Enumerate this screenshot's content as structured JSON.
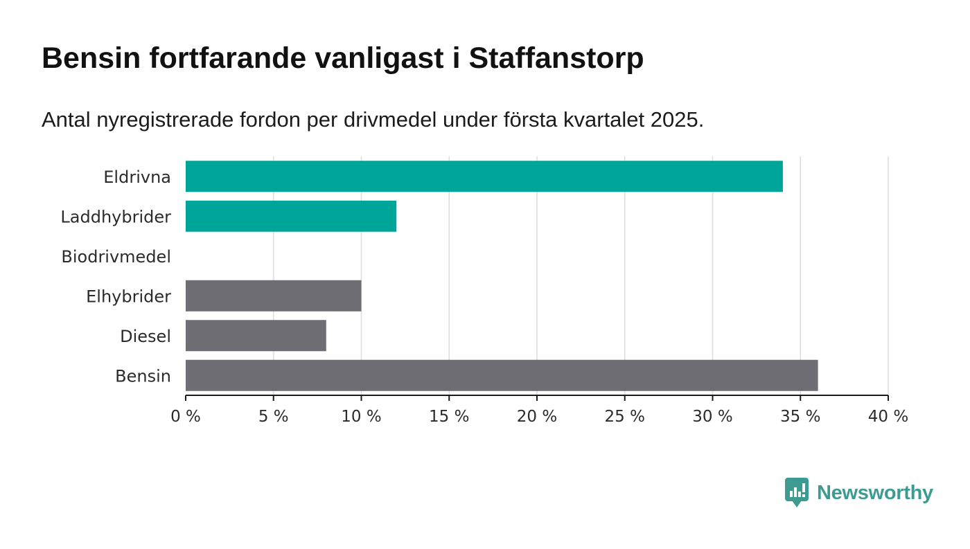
{
  "title": "Bensin fortfarande vanligast i Staffanstorp",
  "subtitle": "Antal nyregistrerade fordon per drivmedel under första kvartalet 2025.",
  "brand": {
    "name": "Newsworthy",
    "icon": "newsworthy-logo-icon",
    "color": "#3d9b91"
  },
  "chart_data": {
    "type": "bar",
    "orientation": "horizontal",
    "categories": [
      "Eldrivna",
      "Laddhybrider",
      "Biodrivmedel",
      "Elhybrider",
      "Diesel",
      "Bensin"
    ],
    "values": [
      34,
      12,
      0,
      10,
      8,
      36
    ],
    "colors": [
      "#00a59a",
      "#00a59a",
      "#00a59a",
      "#6e6d74",
      "#6e6d74",
      "#6e6d74"
    ],
    "unit": "%",
    "xlim": [
      0,
      40
    ],
    "x_ticks": [
      "0 %",
      "5 %",
      "10 %",
      "15 %",
      "20 %",
      "25 %",
      "30 %",
      "35 %",
      "40 %"
    ],
    "grid": true
  }
}
